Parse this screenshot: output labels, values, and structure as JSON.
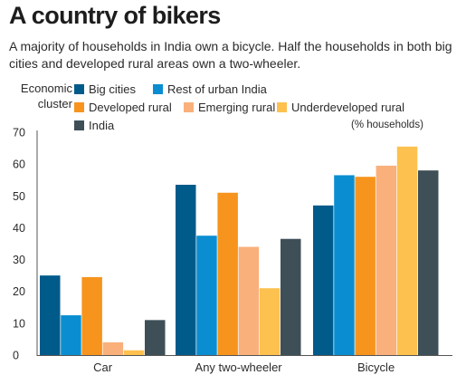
{
  "title": "A country of bikers",
  "subtitle": "A majority of households in India own a bicycle. Half the households in both big cities and developed rural areas own a two-wheeler.",
  "legend_label": "Economic cluster",
  "unit_label": "(% households)",
  "chart_data": {
    "type": "bar",
    "categories": [
      "Car",
      "Any two-wheeler",
      "Bicycle"
    ],
    "series": [
      {
        "name": "Big cities",
        "color": "#005b8a",
        "values": [
          25,
          53.5,
          47
        ]
      },
      {
        "name": "Rest of urban India",
        "color": "#0a8ed1",
        "values": [
          12.5,
          37.5,
          56.5
        ]
      },
      {
        "name": "Developed rural",
        "color": "#f7941d",
        "values": [
          24.5,
          51,
          56
        ]
      },
      {
        "name": "Emerging rural",
        "color": "#f9b07a",
        "values": [
          4,
          34,
          59.5
        ]
      },
      {
        "name": "Underdeveloped rural",
        "color": "#fcc14f",
        "values": [
          1.5,
          21,
          65.5
        ]
      },
      {
        "name": "India",
        "color": "#3e4f58",
        "values": [
          11,
          36.5,
          58
        ]
      }
    ],
    "ylim": [
      0,
      70
    ],
    "yticks": [
      0,
      10,
      20,
      30,
      40,
      50,
      60,
      70
    ],
    "grid": false,
    "legend_position": "top"
  }
}
